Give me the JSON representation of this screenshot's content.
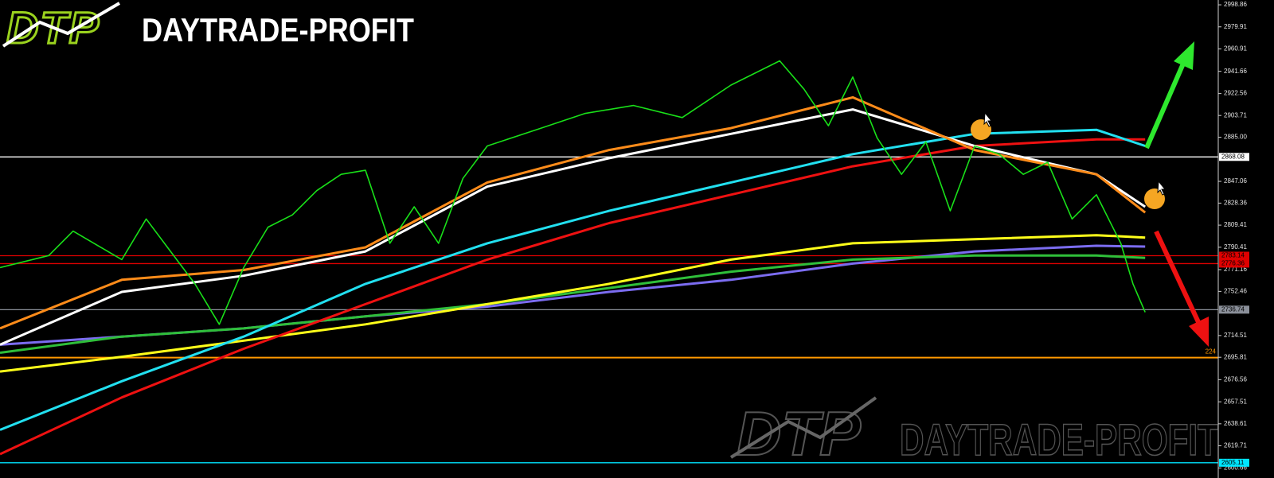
{
  "header": {
    "logo": "DTP",
    "brand": "DAYTRADE-PROFIT"
  },
  "watermark": {
    "logo": "DTP",
    "brand": "DAYTRADE-PROFIT"
  },
  "chart_data": {
    "type": "line",
    "xlim": [
      0,
      100
    ],
    "ylim": [
      2592,
      3003
    ],
    "yticks": [
      2998.86,
      2979.91,
      2960.91,
      2941.66,
      2922.56,
      2903.71,
      {
        "value": 2885,
        "label": "2885.00"
      },
      2847.06,
      2828.36,
      2809.41,
      2790.41,
      2771.16,
      2752.46,
      2714.51,
      2695.81,
      2676.56,
      2657.51,
      2638.61,
      2619.71,
      2600.66
    ],
    "grid": false,
    "levels": [
      {
        "value": 2868.08,
        "color": "#ffffff"
      },
      {
        "value": 2783.14,
        "color": "#e00000"
      },
      {
        "value": 2776.36,
        "color": "#e00000"
      },
      {
        "value": 2736.74,
        "color": "#8a8f99"
      },
      {
        "value": 2605.11,
        "color": "#00e5ff"
      }
    ],
    "support": {
      "value": 2695.5,
      "color": "#ff9900",
      "annotation": "224"
    },
    "price": {
      "color": "#19e019",
      "x": [
        0,
        4,
        6,
        10,
        12,
        14,
        16,
        18,
        20,
        22,
        24,
        26,
        28,
        30,
        32,
        34,
        36,
        38,
        40,
        44,
        48,
        52,
        56,
        60,
        64,
        66,
        68,
        70,
        72,
        74,
        76,
        78,
        80,
        82,
        84,
        86,
        88,
        90,
        92,
        93,
        94
      ],
      "values": [
        2772.9,
        2783.3,
        2804.3,
        2779.8,
        2814.7,
        2786.8,
        2758.9,
        2724.1,
        2772.9,
        2807.7,
        2818.2,
        2839.1,
        2853.1,
        2856.6,
        2793.8,
        2825.2,
        2793.8,
        2849.6,
        2877.5,
        2891.4,
        2905.4,
        2912.3,
        2901.9,
        2929.8,
        2950.7,
        2926.3,
        2894.9,
        2936.8,
        2884.4,
        2853.1,
        2881.0,
        2821.7,
        2877.5,
        2870.5,
        2853.1,
        2863.5,
        2814.7,
        2835.6,
        2793.8,
        2758.9,
        2734.5
      ]
    },
    "x": [
      0,
      10,
      20,
      30,
      40,
      50,
      60,
      70,
      80,
      90,
      94
    ],
    "series": [
      {
        "color": "#7b6cf0",
        "values": [
          2706.6,
          2713.6,
          2720.6,
          2731.0,
          2739.4,
          2752.0,
          2762.4,
          2776.4,
          2786.8,
          2791.7,
          2791.0
        ]
      },
      {
        "color": "#2fbf3a",
        "values": [
          2699.7,
          2713.6,
          2720.6,
          2731.0,
          2741.5,
          2755.4,
          2769.4,
          2779.8,
          2783.3,
          2783.3,
          2781.2
        ]
      },
      {
        "color": "#ffff1a",
        "values": [
          2683.6,
          2696.2,
          2710.1,
          2724.1,
          2741.5,
          2758.9,
          2779.8,
          2793.8,
          2797.3,
          2800.8,
          2798.7
        ]
      },
      {
        "color": "#ee1111",
        "values": [
          2612.5,
          2661.3,
          2703.1,
          2741.5,
          2779.8,
          2811.2,
          2835.6,
          2860.0,
          2877.5,
          2883.1,
          2883.1
        ]
      },
      {
        "color": "#22e0f0",
        "values": [
          2633.4,
          2675.2,
          2713.6,
          2758.9,
          2793.8,
          2821.7,
          2846.1,
          2870.5,
          2887.9,
          2891.4,
          2877.5
        ]
      },
      {
        "color": "#ffffff",
        "values": [
          2706.6,
          2752.0,
          2765.9,
          2786.8,
          2842.6,
          2867.0,
          2887.9,
          2908.9,
          2877.5,
          2853.1,
          2825.2
        ]
      },
      {
        "color": "#ff8c1a",
        "values": [
          2720.6,
          2762.4,
          2770.8,
          2790.3,
          2846.1,
          2874.0,
          2892.8,
          2919.3,
          2874.0,
          2853.1,
          2820.3
        ]
      }
    ]
  }
}
